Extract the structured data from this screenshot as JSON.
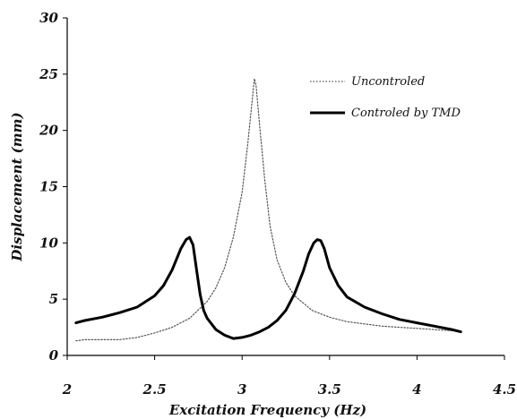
{
  "chart_data": {
    "type": "line",
    "title": "",
    "xlabel": "Excitation Frequency (Hz)",
    "ylabel": "Displacement (mm)",
    "xlim": [
      2,
      4.5
    ],
    "ylim": [
      0,
      30
    ],
    "x_ticks": [
      "2",
      "2.5",
      "3",
      "3.5",
      "4",
      "4.5"
    ],
    "y_ticks": [
      "0",
      "5",
      "10",
      "15",
      "20",
      "25",
      "30"
    ],
    "grid": false,
    "legend_position": "top-right",
    "series": [
      {
        "name": "Uncontroled",
        "style": "dotted",
        "color": "#555555",
        "x": [
          2.05,
          2.1,
          2.2,
          2.3,
          2.4,
          2.5,
          2.6,
          2.7,
          2.8,
          2.85,
          2.9,
          2.95,
          3.0,
          3.03,
          3.06,
          3.07,
          3.08,
          3.1,
          3.13,
          3.16,
          3.2,
          3.25,
          3.3,
          3.4,
          3.5,
          3.6,
          3.7,
          3.8,
          3.9,
          4.0,
          4.1,
          4.2,
          4.25
        ],
        "y": [
          1.3,
          1.4,
          1.4,
          1.4,
          1.6,
          2.0,
          2.5,
          3.3,
          4.8,
          6.0,
          7.8,
          10.5,
          14.5,
          18.5,
          23.0,
          24.6,
          24.0,
          20.5,
          15.5,
          11.5,
          8.5,
          6.5,
          5.3,
          4.0,
          3.4,
          3.0,
          2.8,
          2.6,
          2.5,
          2.4,
          2.3,
          2.2,
          2.1
        ]
      },
      {
        "name": "Controled by TMD",
        "style": "solid",
        "color": "#000000",
        "x": [
          2.05,
          2.1,
          2.2,
          2.3,
          2.4,
          2.5,
          2.55,
          2.6,
          2.65,
          2.68,
          2.7,
          2.72,
          2.74,
          2.76,
          2.78,
          2.8,
          2.85,
          2.9,
          2.95,
          3.0,
          3.05,
          3.1,
          3.15,
          3.2,
          3.25,
          3.3,
          3.35,
          3.38,
          3.41,
          3.43,
          3.45,
          3.47,
          3.5,
          3.55,
          3.6,
          3.7,
          3.8,
          3.9,
          4.0,
          4.1,
          4.2,
          4.25
        ],
        "y": [
          2.9,
          3.1,
          3.4,
          3.8,
          4.3,
          5.3,
          6.2,
          7.6,
          9.5,
          10.3,
          10.5,
          9.8,
          7.6,
          5.4,
          4.0,
          3.3,
          2.3,
          1.8,
          1.5,
          1.6,
          1.8,
          2.1,
          2.5,
          3.1,
          4.0,
          5.5,
          7.5,
          9.0,
          10.0,
          10.3,
          10.2,
          9.5,
          7.8,
          6.2,
          5.2,
          4.3,
          3.7,
          3.2,
          2.9,
          2.6,
          2.3,
          2.1
        ]
      }
    ]
  }
}
